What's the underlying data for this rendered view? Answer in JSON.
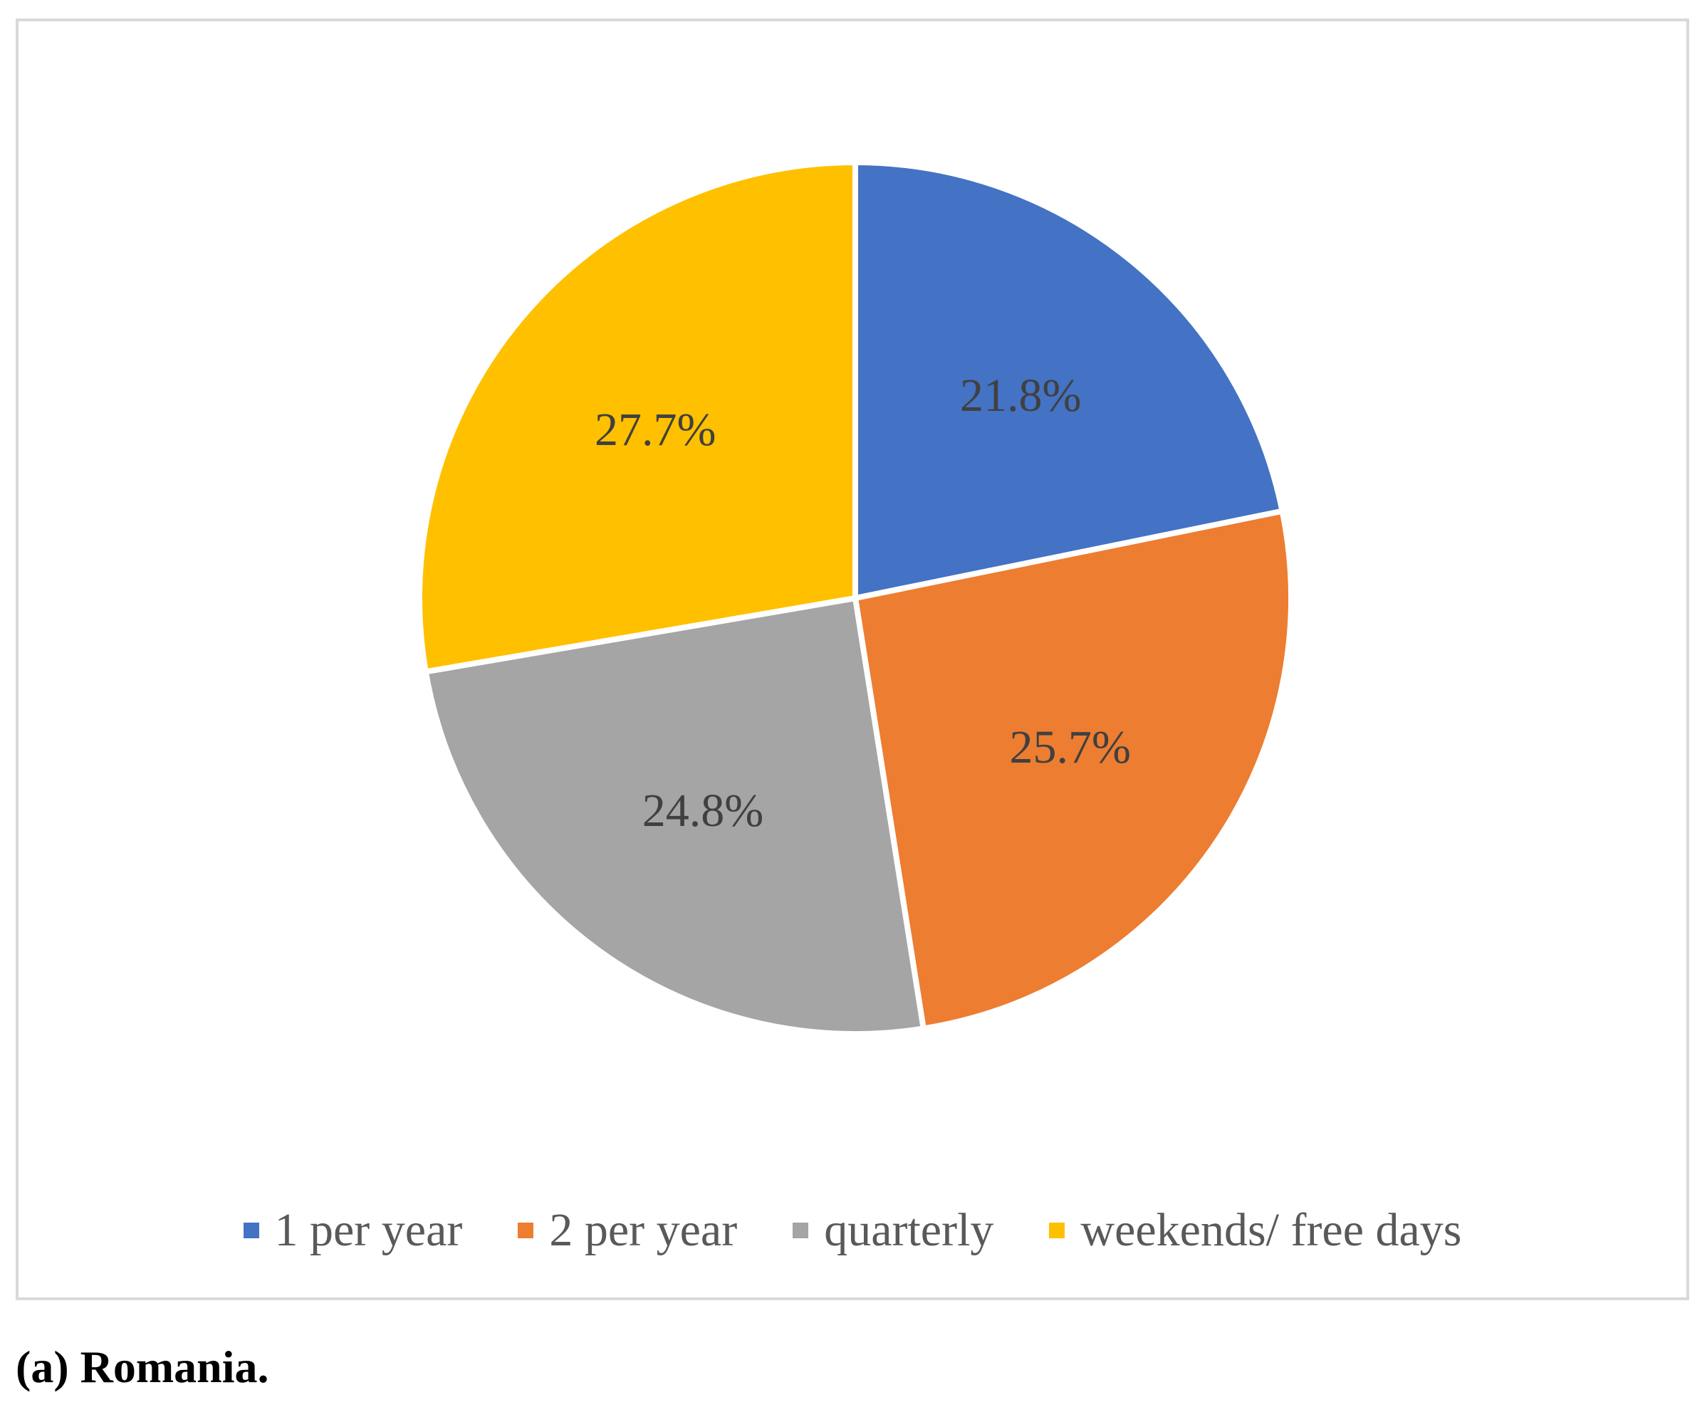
{
  "chart_data": {
    "type": "pie",
    "categories": [
      "1 per year",
      "2 per year",
      "quarterly",
      "weekends/ free days"
    ],
    "values": [
      21.8,
      25.7,
      24.8,
      27.7
    ],
    "labels": [
      "21.8%",
      "25.7%",
      "24.8%",
      "27.7%"
    ],
    "colors": [
      "#4472C4",
      "#ED7D31",
      "#A5A5A5",
      "#FFC000"
    ],
    "start_angle_deg": 0,
    "direction": "clockwise",
    "legend_position": "bottom"
  },
  "caption": "(a) Romania."
}
